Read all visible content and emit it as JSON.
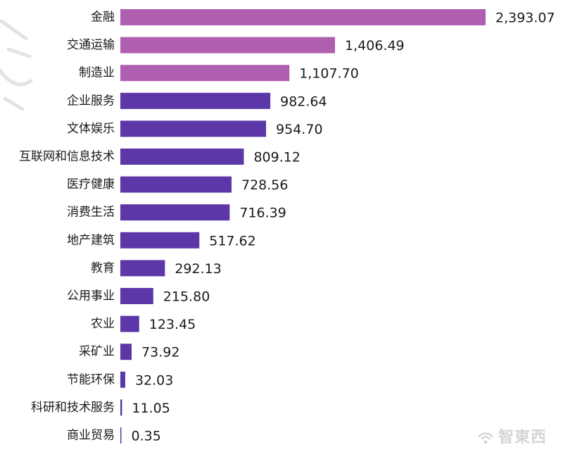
{
  "chart_data": {
    "type": "bar",
    "orientation": "horizontal",
    "categories": [
      "金融",
      "交通运输",
      "制造业",
      "企业服务",
      "文体娱乐",
      "互联网和信息技术",
      "医疗健康",
      "消费生活",
      "地产建筑",
      "教育",
      "公用事业",
      "农业",
      "采矿业",
      "节能环保",
      "科研和技术服务",
      "商业贸易"
    ],
    "values": [
      2393.07,
      1406.49,
      1107.7,
      982.64,
      954.7,
      809.12,
      728.56,
      716.39,
      517.62,
      292.13,
      215.8,
      123.45,
      73.92,
      32.03,
      11.05,
      0.35
    ],
    "value_labels": [
      "2,393.07",
      "1,406.49",
      "1,107.70",
      "982.64",
      "954.70",
      "809.12",
      "728.56",
      "716.39",
      "517.62",
      "292.13",
      "215.80",
      "123.45",
      "73.92",
      "32.03",
      "11.05",
      "0.35"
    ],
    "highlight_count": 3,
    "colors": {
      "highlight": "#b05fb0",
      "default": "#5b37a8"
    },
    "grid": false,
    "title": "",
    "xlabel": "",
    "ylabel": ""
  },
  "watermark": {
    "logo": "智東西"
  }
}
